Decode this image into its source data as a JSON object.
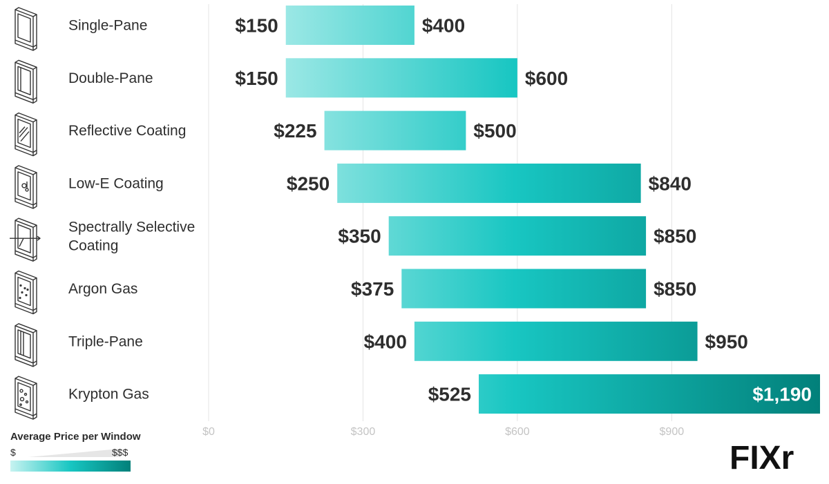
{
  "chart_data": {
    "type": "bar",
    "orientation": "horizontal-range",
    "title": "",
    "xlabel": "",
    "ylabel": "",
    "xlim": [
      0,
      1190
    ],
    "grid": true,
    "categories": [
      "Single-Pane",
      "Double-Pane",
      "Reflective Coating",
      "Low-E Coating",
      "Spectrally Selective Coating",
      "Argon Gas",
      "Triple-Pane",
      "Krypton Gas"
    ],
    "low": [
      150,
      150,
      225,
      250,
      350,
      375,
      400,
      525
    ],
    "high": [
      400,
      600,
      500,
      840,
      850,
      850,
      950,
      1190
    ],
    "low_labels": [
      "$150",
      "$150",
      "$225",
      "$250",
      "$350",
      "$375",
      "$400",
      "$525"
    ],
    "high_labels": [
      "$400",
      "$600",
      "$500",
      "$840",
      "$850",
      "$850",
      "$950",
      "$1,190"
    ],
    "x_ticks": [
      0,
      300,
      600,
      900
    ],
    "x_tick_labels": [
      "$0",
      "$300",
      "$600",
      "$900"
    ],
    "icons": [
      "single-pane-window-icon",
      "double-pane-window-icon",
      "reflective-coating-window-icon",
      "low-e-coating-window-icon",
      "spectrally-selective-window-icon",
      "argon-gas-window-icon",
      "triple-pane-window-icon",
      "krypton-gas-window-icon"
    ],
    "colors": {
      "low": "#c7f3f1",
      "mid": "#18c6c2",
      "high": "#02807a",
      "grid": "#e3e3e3",
      "tick_text": "#c4c4c4"
    }
  },
  "legend": {
    "title": "Average Price per Window",
    "low_label": "$",
    "high_label": "$$$"
  },
  "logo": {
    "text": "FIXr"
  }
}
